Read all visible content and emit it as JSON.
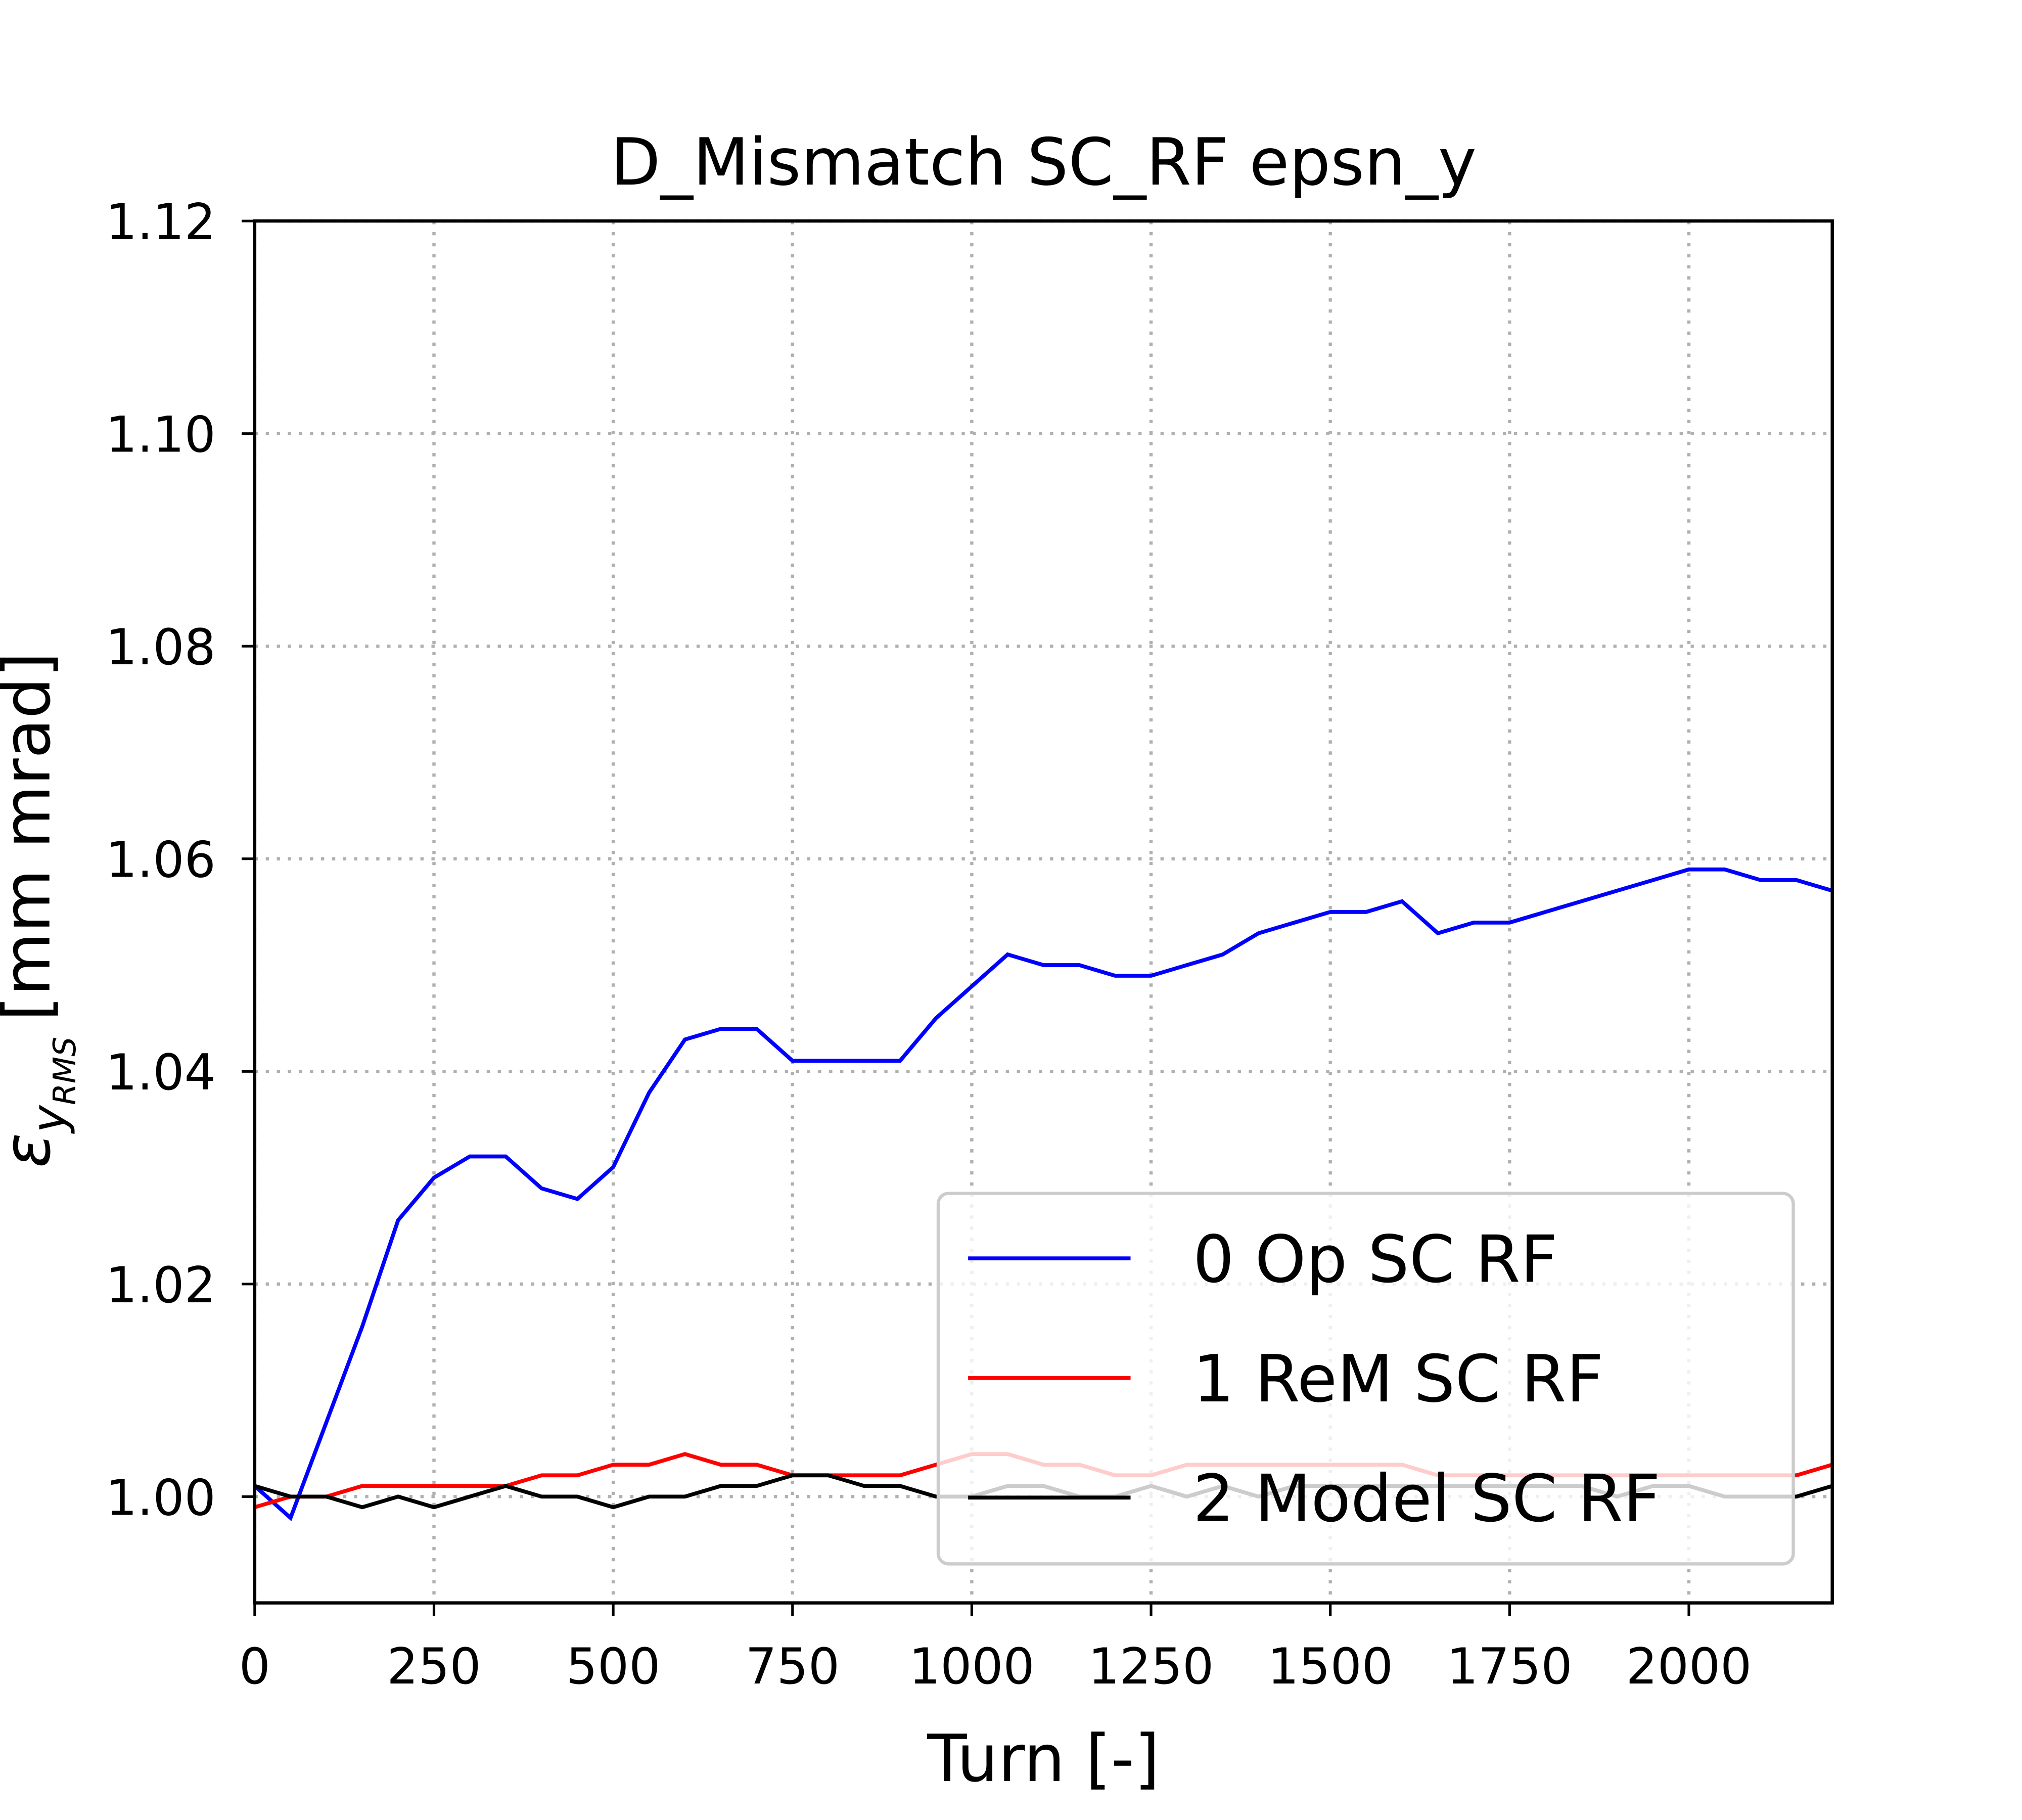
{
  "chart_data": {
    "type": "line",
    "title": "D_Mismatch SC_RF epsn_y",
    "xlabel": "Turn [-]",
    "ylabel": {
      "symbol": "ε",
      "subscript": "y",
      "subsubscript": "RMS",
      "unit": "[mm mrad]"
    },
    "x": [
      0,
      50,
      100,
      150,
      200,
      250,
      300,
      350,
      400,
      450,
      500,
      550,
      600,
      650,
      700,
      750,
      800,
      850,
      900,
      950,
      1000,
      1050,
      1100,
      1150,
      1200,
      1250,
      1300,
      1350,
      1400,
      1450,
      1500,
      1550,
      1600,
      1650,
      1700,
      1750,
      1800,
      1850,
      1900,
      1950,
      2000,
      2050,
      2100,
      2150,
      2200
    ],
    "series": [
      {
        "name": "0 Op SC RF",
        "color": "#0000ff",
        "values": [
          1.001,
          0.998,
          1.007,
          1.016,
          1.026,
          1.03,
          1.032,
          1.032,
          1.029,
          1.028,
          1.031,
          1.038,
          1.043,
          1.044,
          1.044,
          1.041,
          1.041,
          1.041,
          1.041,
          1.045,
          1.048,
          1.051,
          1.05,
          1.05,
          1.049,
          1.049,
          1.05,
          1.051,
          1.053,
          1.054,
          1.055,
          1.055,
          1.056,
          1.053,
          1.054,
          1.054,
          1.055,
          1.056,
          1.057,
          1.058,
          1.059,
          1.059,
          1.058,
          1.058,
          1.057
        ]
      },
      {
        "name": "1 ReM SC RF",
        "color": "#ff0000",
        "values": [
          0.999,
          1.0,
          1.0,
          1.001,
          1.001,
          1.001,
          1.001,
          1.001,
          1.002,
          1.002,
          1.003,
          1.003,
          1.004,
          1.003,
          1.003,
          1.002,
          1.002,
          1.002,
          1.002,
          1.003,
          1.004,
          1.004,
          1.003,
          1.003,
          1.002,
          1.002,
          1.003,
          1.003,
          1.003,
          1.003,
          1.003,
          1.003,
          1.003,
          1.002,
          1.002,
          1.002,
          1.002,
          1.002,
          1.002,
          1.002,
          1.002,
          1.002,
          1.002,
          1.002,
          1.003
        ]
      },
      {
        "name": "2 Model SC RF",
        "color": "#000000",
        "values": [
          1.001,
          1.0,
          1.0,
          0.999,
          1.0,
          0.999,
          1.0,
          1.001,
          1.0,
          1.0,
          0.999,
          1.0,
          1.0,
          1.001,
          1.001,
          1.002,
          1.002,
          1.001,
          1.001,
          1.0,
          1.0,
          1.001,
          1.001,
          1.0,
          1.0,
          1.001,
          1.0,
          1.001,
          1.0,
          1.001,
          1.001,
          1.001,
          1.001,
          1.001,
          1.001,
          1.001,
          1.001,
          1.001,
          1.0,
          1.001,
          1.001,
          1.0,
          1.0,
          1.0,
          1.001
        ]
      }
    ],
    "xlim": [
      0,
      2200
    ],
    "xticks": [
      0,
      250,
      500,
      750,
      1000,
      1250,
      1500,
      1750,
      2000
    ],
    "ylim": [
      0.99,
      1.12
    ],
    "yticks": [
      {
        "value": 1.0,
        "label": "1.00"
      },
      1.02,
      1.04,
      1.06,
      1.08,
      {
        "value": 1.1,
        "label": "1.10"
      },
      1.12
    ],
    "grid": true,
    "legend": "lower right"
  }
}
